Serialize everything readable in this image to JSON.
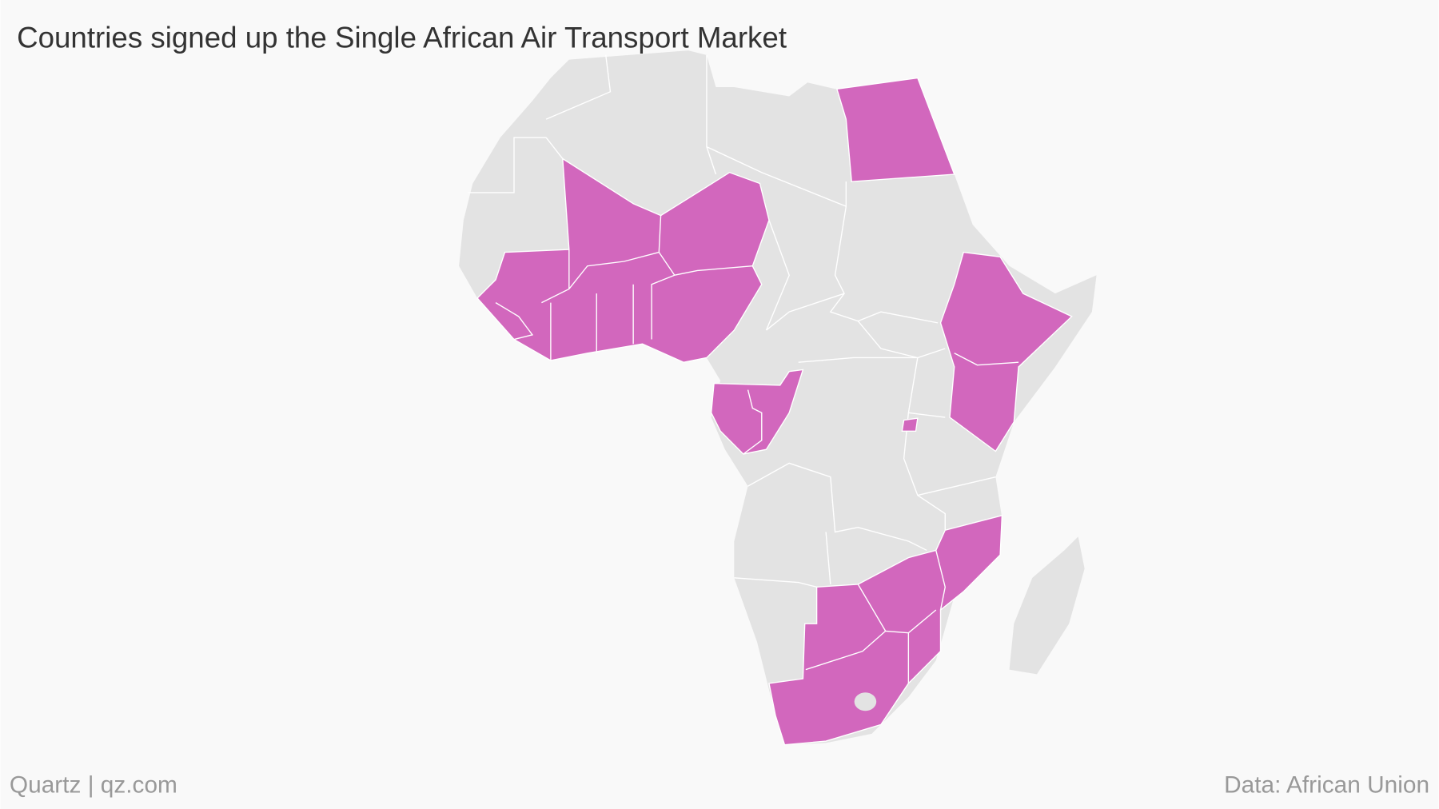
{
  "title": "Countries signed up the Single African Air Transport Market",
  "credit": "Quartz | qz.com",
  "source": "Data: African Union",
  "base_color": "#e3e3e3",
  "highlight_color": "#d267bd",
  "background": "#f9f9f9"
}
